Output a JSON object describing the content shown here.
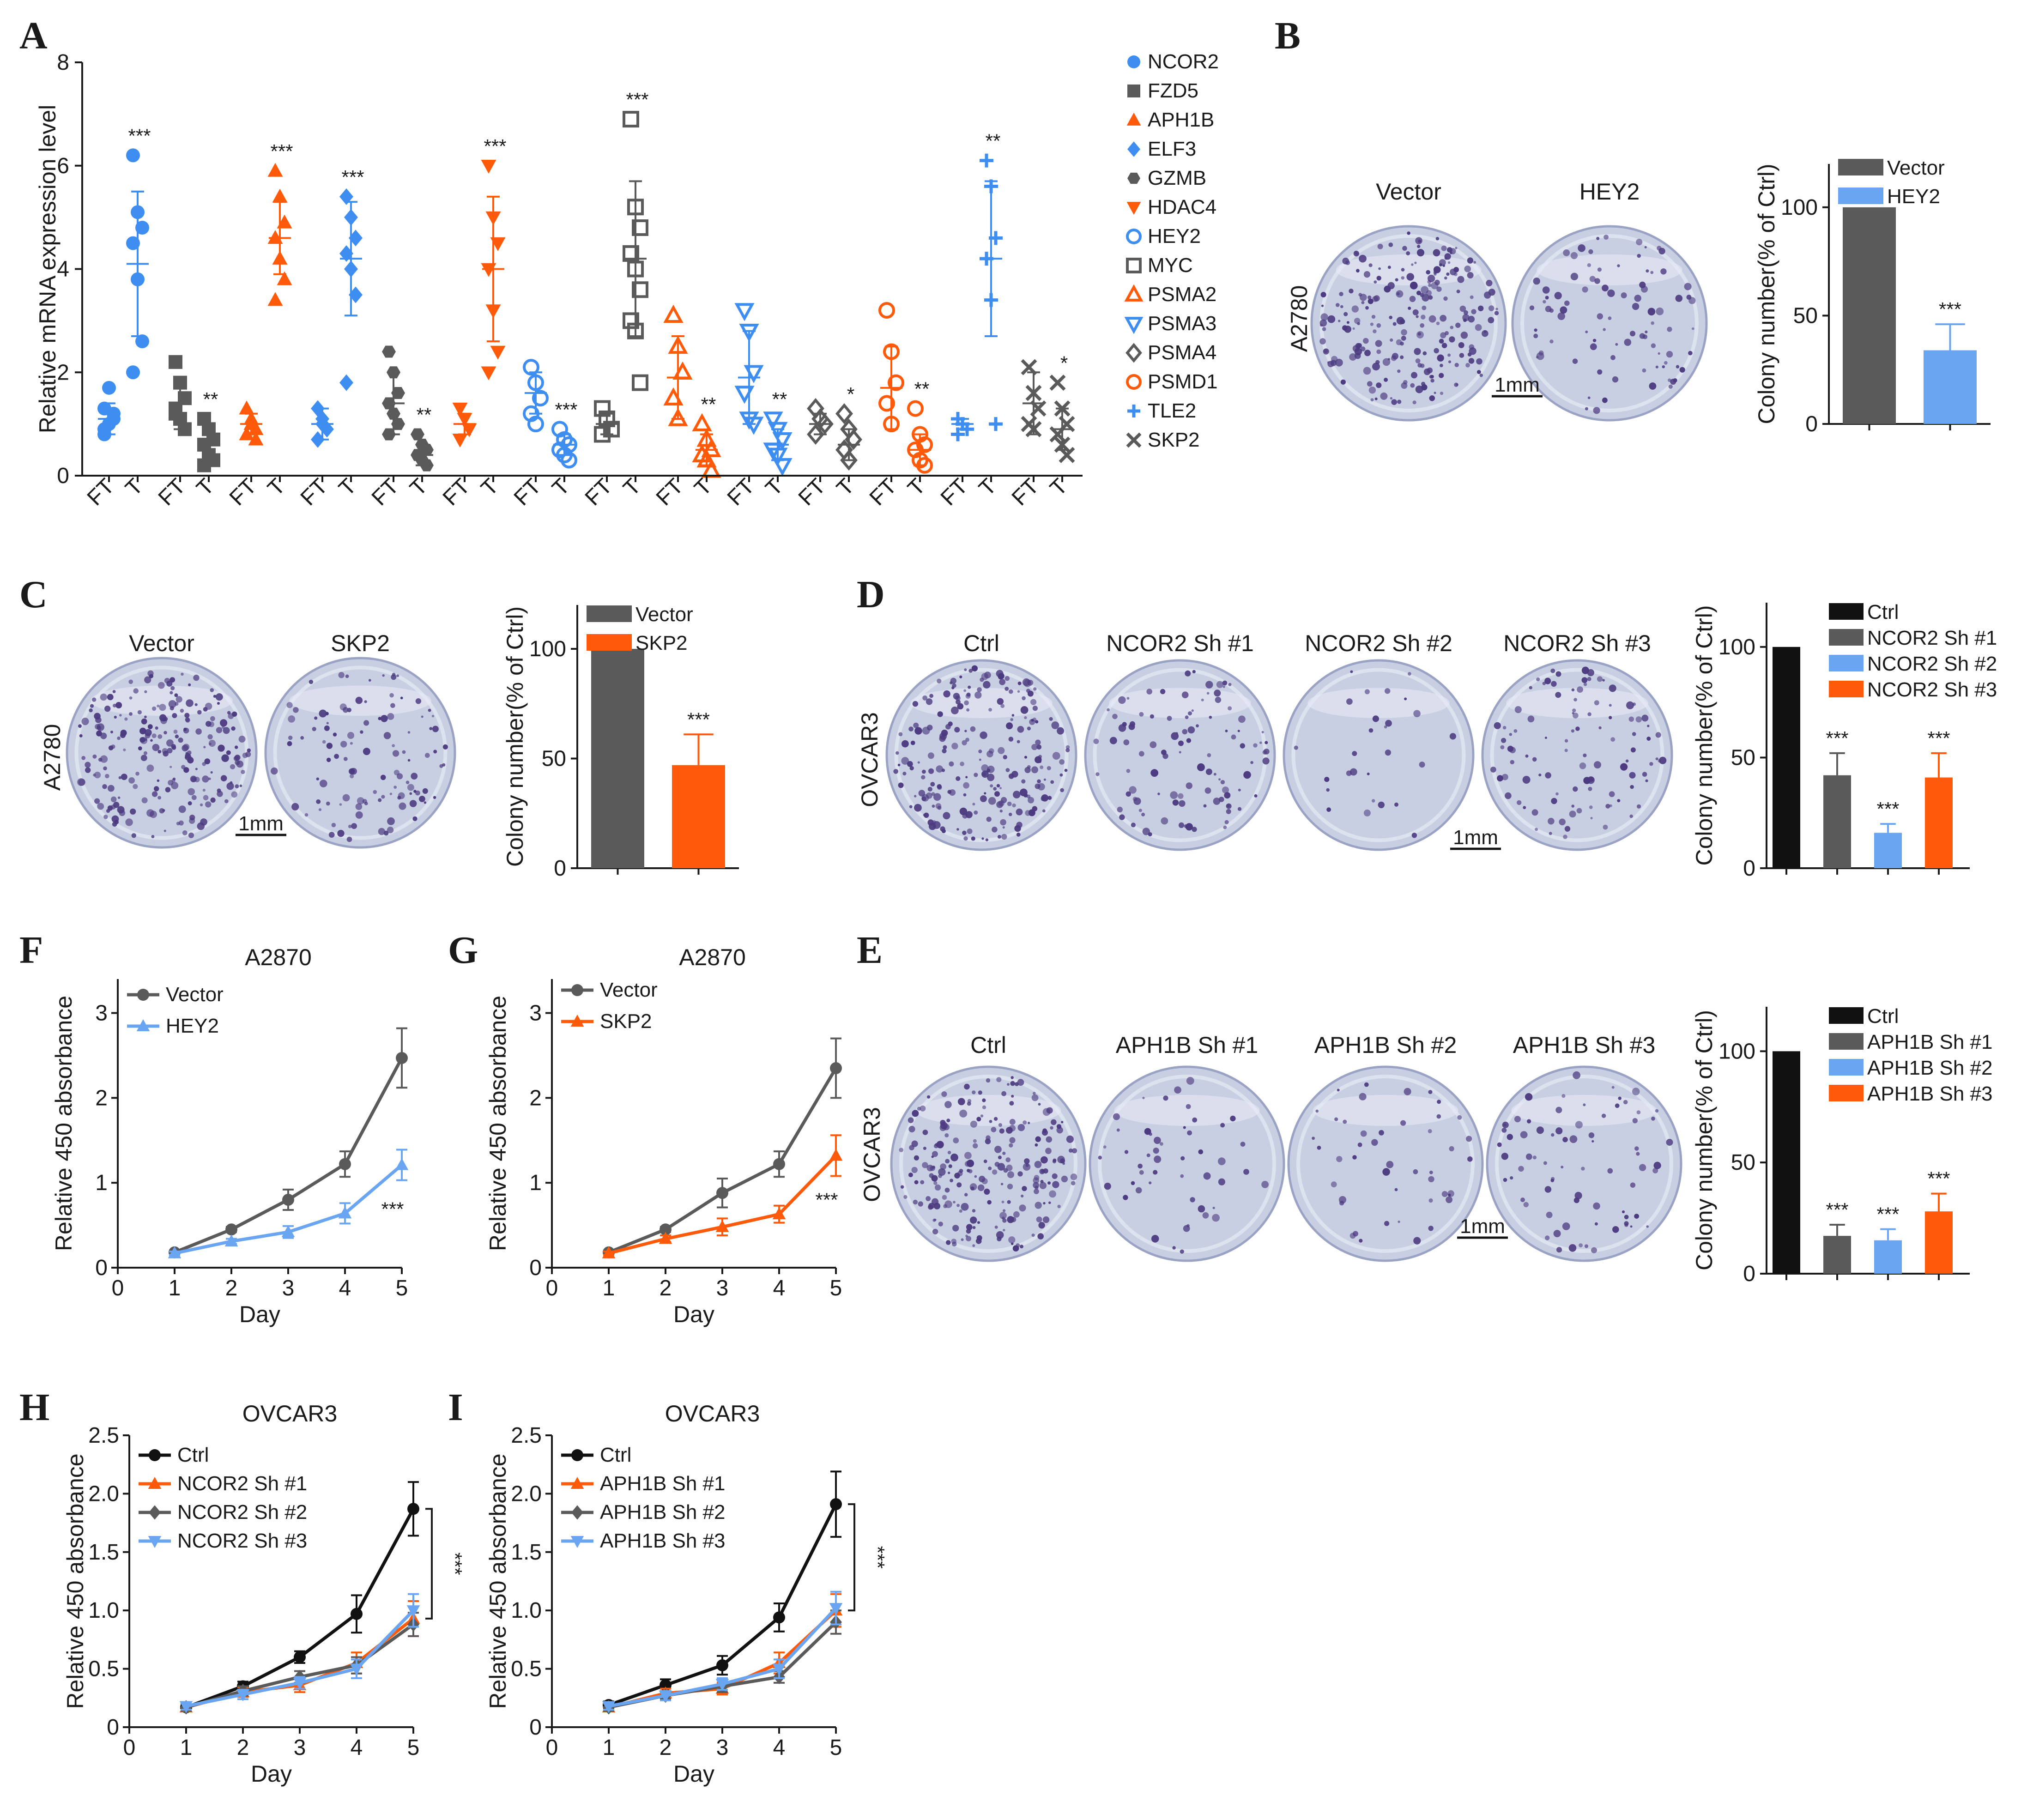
{
  "colors": {
    "gray": "#5a5a5a",
    "black": "#111111",
    "blue": "#3d8ef0",
    "orange": "#ff5a0a",
    "lightblue": "#6aa5f2",
    "dish": "#c9cfe3",
    "dot": "#4b3a7f"
  },
  "panels": {
    "A": "A",
    "B": "B",
    "C": "C",
    "D": "D",
    "E": "E",
    "F": "F",
    "G": "G",
    "H": "H",
    "I": "I"
  },
  "chart_data": [
    {
      "id": "A",
      "type": "scatter",
      "ylabel": "Relative mRNA expression level",
      "ylim": [
        0,
        8
      ],
      "yticks": [
        "0",
        "2",
        "4",
        "6",
        "8"
      ],
      "xtick_labels": [
        "FT",
        "T"
      ],
      "genes": [
        {
          "name": "NCOR2",
          "marker": "circle",
          "color": "#3d8ef0",
          "ft": [
            0.8,
            1.0,
            1.1,
            1.3,
            1.7,
            1.2,
            0.9
          ],
          "t": [
            6.2,
            5.1,
            4.8,
            4.5,
            3.8,
            2.6,
            2.0
          ],
          "ft_mean": 1.1,
          "ft_sd": 0.3,
          "t_mean": 4.1,
          "t_sd": 1.4,
          "sig": "***"
        },
        {
          "name": "FZD5",
          "marker": "square",
          "color": "#5a5a5a",
          "ft": [
            2.2,
            1.8,
            1.5,
            1.3,
            1.1,
            0.9,
            1.2
          ],
          "t": [
            1.1,
            0.9,
            0.7,
            0.6,
            0.4,
            0.3,
            0.2
          ],
          "ft_mean": 1.4,
          "ft_sd": 0.5,
          "t_mean": 0.6,
          "t_sd": 0.4,
          "sig": "**"
        },
        {
          "name": "APH1B",
          "marker": "triangle",
          "color": "#ff5a0a",
          "ft": [
            1.3,
            1.0,
            0.9,
            0.8,
            1.1,
            0.7
          ],
          "t": [
            5.9,
            5.4,
            4.9,
            4.6,
            4.2,
            3.8,
            3.4
          ],
          "ft_mean": 1.0,
          "ft_sd": 0.2,
          "t_mean": 4.6,
          "t_sd": 0.7,
          "sig": "***"
        },
        {
          "name": "ELF3",
          "marker": "diamond",
          "color": "#3d8ef0",
          "ft": [
            1.3,
            1.0,
            0.9,
            0.7,
            1.1
          ],
          "t": [
            5.4,
            5.0,
            4.6,
            4.3,
            4.0,
            3.5,
            1.8
          ],
          "ft_mean": 1.0,
          "ft_sd": 0.3,
          "t_mean": 4.2,
          "t_sd": 1.1,
          "sig": "***"
        },
        {
          "name": "GZMB",
          "marker": "hexagon",
          "color": "#5a5a5a",
          "ft": [
            2.4,
            2.0,
            1.6,
            1.4,
            1.2,
            1.0,
            0.8
          ],
          "t": [
            0.8,
            0.6,
            0.5,
            0.4,
            0.3,
            0.2
          ],
          "ft_mean": 1.4,
          "ft_sd": 0.6,
          "t_mean": 0.4,
          "t_sd": 0.2,
          "sig": "**"
        },
        {
          "name": "HDAC4",
          "marker": "triangle-down",
          "color": "#ff5a0a",
          "ft": [
            1.3,
            1.1,
            0.9,
            0.7
          ],
          "t": [
            6.0,
            5.0,
            4.5,
            4.0,
            3.2,
            2.4,
            2.0
          ],
          "ft_mean": 1.0,
          "ft_sd": 0.2,
          "t_mean": 4.0,
          "t_sd": 1.4,
          "sig": "***"
        },
        {
          "name": "HEY2",
          "marker": "circle-open",
          "color": "#3d8ef0",
          "ft": [
            2.1,
            1.8,
            1.5,
            1.2,
            1.0
          ],
          "t": [
            0.9,
            0.7,
            0.6,
            0.5,
            0.4,
            0.3
          ],
          "ft_mean": 1.6,
          "ft_sd": 0.4,
          "t_mean": 0.6,
          "t_sd": 0.2,
          "sig": "***"
        },
        {
          "name": "MYC",
          "marker": "square-open",
          "color": "#5a5a5a",
          "ft": [
            1.3,
            1.1,
            0.9,
            0.8
          ],
          "t": [
            6.9,
            5.2,
            4.8,
            4.3,
            4.0,
            3.6,
            3.0,
            2.8,
            1.8
          ],
          "ft_mean": 1.0,
          "ft_sd": 0.2,
          "t_mean": 4.2,
          "t_sd": 1.5,
          "sig": "***"
        },
        {
          "name": "PSMA2",
          "marker": "triangle-open",
          "color": "#ff5a0a",
          "ft": [
            3.1,
            2.5,
            2.0,
            1.5,
            1.1
          ],
          "t": [
            1.0,
            0.7,
            0.5,
            0.4,
            0.3,
            0.1
          ],
          "ft_mean": 1.9,
          "ft_sd": 0.8,
          "t_mean": 0.5,
          "t_sd": 0.3,
          "sig": "**"
        },
        {
          "name": "PSMA3",
          "marker": "triangle-down-open",
          "color": "#3d8ef0",
          "ft": [
            3.2,
            2.8,
            2.0,
            1.6,
            1.1,
            1.0
          ],
          "t": [
            1.1,
            0.9,
            0.7,
            0.5,
            0.4,
            0.2
          ],
          "ft_mean": 1.9,
          "ft_sd": 0.9,
          "t_mean": 0.6,
          "t_sd": 0.3,
          "sig": "**"
        },
        {
          "name": "PSMA4",
          "marker": "diamond-open",
          "color": "#5a5a5a",
          "ft": [
            1.3,
            1.1,
            1.0,
            0.8
          ],
          "t": [
            1.2,
            0.9,
            0.7,
            0.5,
            0.3
          ],
          "ft_mean": 1.0,
          "ft_sd": 0.2,
          "t_mean": 0.6,
          "t_sd": 0.3,
          "sig": "*"
        },
        {
          "name": "PSMD1",
          "marker": "circle-open",
          "color": "#ff5a0a",
          "ft": [
            3.2,
            2.4,
            1.8,
            1.4,
            1.0
          ],
          "t": [
            1.3,
            0.8,
            0.6,
            0.5,
            0.3,
            0.2
          ],
          "ft_mean": 1.7,
          "ft_sd": 0.8,
          "t_mean": 0.5,
          "t_sd": 0.3,
          "sig": "**"
        },
        {
          "name": "TLE2",
          "marker": "plus",
          "color": "#3d8ef0",
          "ft": [
            1.1,
            1.0,
            0.9,
            0.8
          ],
          "t": [
            6.1,
            5.6,
            4.6,
            4.2,
            3.4,
            1.0
          ],
          "ft_mean": 1.0,
          "ft_sd": 0.1,
          "t_mean": 4.2,
          "t_sd": 1.5,
          "sig": "**"
        },
        {
          "name": "SKP2",
          "marker": "x",
          "color": "#5a5a5a",
          "ft": [
            2.1,
            1.6,
            1.3,
            1.0,
            0.9
          ],
          "t": [
            1.8,
            1.3,
            1.0,
            0.8,
            0.6,
            0.4
          ],
          "ft_mean": 1.4,
          "ft_sd": 0.6,
          "t_mean": 0.9,
          "t_sd": 0.4,
          "sig": "*"
        }
      ]
    },
    {
      "id": "B",
      "type": "bar",
      "ylabel": "Colony number(% of Ctrl)",
      "ylim": [
        0,
        120
      ],
      "yticks": [
        "0",
        "50",
        "100"
      ],
      "categories": [
        "Vector",
        "HEY2"
      ],
      "values": [
        100,
        34
      ],
      "errors": [
        0,
        12
      ],
      "colors": [
        "#5a5a5a",
        "#6aa5f2"
      ],
      "sig": [
        "",
        "***"
      ]
    },
    {
      "id": "C",
      "type": "bar",
      "ylabel": "Colony number(% of Ctrl)",
      "ylim": [
        0,
        120
      ],
      "yticks": [
        "0",
        "50",
        "100"
      ],
      "categories": [
        "Vector",
        "SKP2"
      ],
      "values": [
        100,
        47
      ],
      "errors": [
        0,
        14
      ],
      "colors": [
        "#5a5a5a",
        "#ff5a0a"
      ],
      "sig": [
        "",
        "***"
      ]
    },
    {
      "id": "D",
      "type": "bar",
      "ylabel": "Colony number(% of Ctrl)",
      "ylim": [
        0,
        120
      ],
      "yticks": [
        "0",
        "50",
        "100"
      ],
      "categories": [
        "Ctrl",
        "NCOR2 Sh #1",
        "NCOR2 Sh #2",
        "NCOR2 Sh #3"
      ],
      "values": [
        100,
        42,
        16,
        41
      ],
      "errors": [
        0,
        10,
        4,
        11
      ],
      "colors": [
        "#111111",
        "#5a5a5a",
        "#6aa5f2",
        "#ff5a0a"
      ],
      "sig": [
        "",
        "***",
        "***",
        "***"
      ]
    },
    {
      "id": "E",
      "type": "bar",
      "ylabel": "Colony number(% of Ctrl)",
      "ylim": [
        0,
        120
      ],
      "yticks": [
        "0",
        "50",
        "100"
      ],
      "categories": [
        "Ctrl",
        "APH1B Sh #1",
        "APH1B Sh #2",
        "APH1B Sh #3"
      ],
      "values": [
        100,
        17,
        15,
        28
      ],
      "errors": [
        0,
        5,
        5,
        8
      ],
      "colors": [
        "#111111",
        "#5a5a5a",
        "#6aa5f2",
        "#ff5a0a"
      ],
      "sig": [
        "",
        "***",
        "***",
        "***"
      ]
    },
    {
      "id": "F",
      "type": "line",
      "title": "A2870",
      "xlabel": "Day",
      "ylabel": "Relative 450 absorbance",
      "xlim": [
        0,
        5
      ],
      "ylim": [
        0,
        3.4
      ],
      "xticks": [
        "0",
        "1",
        "2",
        "3",
        "4",
        "5"
      ],
      "yticks": [
        "0",
        "1",
        "2",
        "3"
      ],
      "x": [
        1,
        2,
        3,
        4,
        5
      ],
      "series": [
        {
          "name": "Vector",
          "values": [
            0.18,
            0.45,
            0.8,
            1.22,
            2.47
          ],
          "errors": [
            0.02,
            0.03,
            0.12,
            0.15,
            0.35
          ],
          "color": "#5a5a5a",
          "marker": "circle"
        },
        {
          "name": "HEY2",
          "values": [
            0.17,
            0.31,
            0.42,
            0.64,
            1.21
          ],
          "errors": [
            0.02,
            0.03,
            0.07,
            0.12,
            0.18
          ],
          "color": "#6aa5f2",
          "marker": "triangle"
        }
      ],
      "sig": "***"
    },
    {
      "id": "G",
      "type": "line",
      "title": "A2870",
      "xlabel": "Day",
      "ylabel": "Relative 450 absorbance",
      "xlim": [
        0,
        5
      ],
      "ylim": [
        0,
        3.4
      ],
      "xticks": [
        "0",
        "1",
        "2",
        "3",
        "4",
        "5"
      ],
      "yticks": [
        "0",
        "1",
        "2",
        "3"
      ],
      "x": [
        1,
        2,
        3,
        4,
        5
      ],
      "series": [
        {
          "name": "Vector",
          "values": [
            0.18,
            0.45,
            0.88,
            1.22,
            2.35
          ],
          "errors": [
            0.02,
            0.03,
            0.17,
            0.15,
            0.35
          ],
          "color": "#5a5a5a",
          "marker": "circle"
        },
        {
          "name": "SKP2",
          "values": [
            0.17,
            0.34,
            0.48,
            0.63,
            1.32
          ],
          "errors": [
            0.02,
            0.04,
            0.1,
            0.1,
            0.24
          ],
          "color": "#ff5a0a",
          "marker": "triangle"
        }
      ],
      "sig": "***"
    },
    {
      "id": "H",
      "type": "line",
      "title": "OVCAR3",
      "xlabel": "Day",
      "ylabel": "Relative 450 absorbance",
      "xlim": [
        0,
        5
      ],
      "ylim": [
        0,
        2.5
      ],
      "xticks": [
        "0",
        "1",
        "2",
        "3",
        "4",
        "5"
      ],
      "yticks": [
        "0",
        "0.5",
        "1.0",
        "1.5",
        "2.0",
        "2.5"
      ],
      "x": [
        1,
        2,
        3,
        4,
        5
      ],
      "series": [
        {
          "name": "Ctrl",
          "values": [
            0.17,
            0.35,
            0.6,
            0.97,
            1.87
          ],
          "errors": [
            0.03,
            0.04,
            0.05,
            0.16,
            0.23
          ],
          "color": "#111111",
          "marker": "circle"
        },
        {
          "name": "NCOR2 Sh #1",
          "values": [
            0.17,
            0.3,
            0.36,
            0.55,
            0.93
          ],
          "errors": [
            0.03,
            0.04,
            0.06,
            0.09,
            0.15
          ],
          "color": "#ff5a0a",
          "marker": "triangle"
        },
        {
          "name": "NCOR2 Sh #2",
          "values": [
            0.17,
            0.31,
            0.43,
            0.53,
            0.88
          ],
          "errors": [
            0.03,
            0.04,
            0.05,
            0.07,
            0.1
          ],
          "color": "#5a5a5a",
          "marker": "diamond"
        },
        {
          "name": "NCOR2 Sh #3",
          "values": [
            0.18,
            0.28,
            0.38,
            0.5,
            1.0
          ],
          "errors": [
            0.03,
            0.04,
            0.05,
            0.08,
            0.14
          ],
          "color": "#6aa5f2",
          "marker": "triangle-down"
        }
      ],
      "sig": "***"
    },
    {
      "id": "I",
      "type": "line",
      "title": "OVCAR3",
      "xlabel": "Day",
      "ylabel": "Relative 450 absorbance",
      "xlim": [
        0,
        5
      ],
      "ylim": [
        0,
        2.5
      ],
      "xticks": [
        "0",
        "1",
        "2",
        "3",
        "4",
        "5"
      ],
      "yticks": [
        "0",
        "0.5",
        "1.0",
        "1.5",
        "2.0",
        "2.5"
      ],
      "x": [
        1,
        2,
        3,
        4,
        5
      ],
      "series": [
        {
          "name": "Ctrl",
          "values": [
            0.19,
            0.36,
            0.53,
            0.94,
            1.91
          ],
          "errors": [
            0.03,
            0.05,
            0.08,
            0.12,
            0.28
          ],
          "color": "#111111",
          "marker": "circle"
        },
        {
          "name": "APH1B Sh #1",
          "values": [
            0.17,
            0.29,
            0.33,
            0.55,
            1.0
          ],
          "errors": [
            0.03,
            0.04,
            0.05,
            0.09,
            0.14
          ],
          "color": "#ff5a0a",
          "marker": "triangle"
        },
        {
          "name": "APH1B Sh #2",
          "values": [
            0.17,
            0.27,
            0.35,
            0.43,
            0.9
          ],
          "errors": [
            0.03,
            0.03,
            0.05,
            0.05,
            0.1
          ],
          "color": "#5a5a5a",
          "marker": "diamond"
        },
        {
          "name": "APH1B Sh #3",
          "values": [
            0.18,
            0.27,
            0.37,
            0.5,
            1.02
          ],
          "errors": [
            0.03,
            0.04,
            0.05,
            0.08,
            0.14
          ],
          "color": "#6aa5f2",
          "marker": "triangle-down"
        }
      ],
      "sig": "***"
    }
  ],
  "photos": {
    "B": {
      "cell_line": "A2780",
      "dishes": [
        {
          "label": "Vector",
          "density": 1.0
        },
        {
          "label": "HEY2",
          "density": 0.35
        }
      ],
      "scale": "1mm"
    },
    "C": {
      "cell_line": "A2780",
      "dishes": [
        {
          "label": "Vector",
          "density": 1.0
        },
        {
          "label": "SKP2",
          "density": 0.45
        }
      ],
      "scale": "1mm"
    },
    "D": {
      "cell_line": "OVCAR3",
      "dishes": [
        {
          "label": "Ctrl",
          "density": 1.0
        },
        {
          "label": "NCOR2 Sh #1",
          "density": 0.42
        },
        {
          "label": "NCOR2 Sh #2",
          "density": 0.07
        },
        {
          "label": "NCOR2 Sh #3",
          "density": 0.42
        }
      ],
      "scale": "1mm"
    },
    "E": {
      "cell_line": "OVCAR3",
      "dishes": [
        {
          "label": "Ctrl",
          "density": 1.0
        },
        {
          "label": "APH1B Sh #1",
          "density": 0.17
        },
        {
          "label": "APH1B Sh #2",
          "density": 0.15
        },
        {
          "label": "APH1B Sh #3",
          "density": 0.28
        }
      ],
      "scale": "1mm"
    }
  }
}
